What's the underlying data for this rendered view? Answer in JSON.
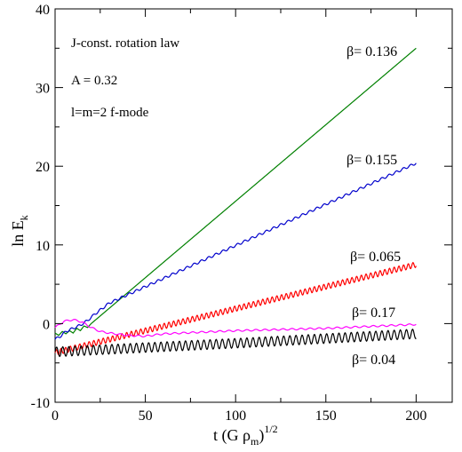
{
  "chart_data": {
    "type": "line",
    "xlabel": {
      "main": "t (G ρ",
      "sub": "m",
      "post": ")",
      "sup": "1/2"
    },
    "ylabel": {
      "main": "ln E",
      "sub": "k"
    },
    "xlim": [
      0,
      220
    ],
    "ylim": [
      -10,
      40
    ],
    "x_ticks": [
      0,
      50,
      100,
      150,
      200
    ],
    "y_ticks": [
      -10,
      0,
      10,
      20,
      30,
      40
    ],
    "x_tick_labels": [
      "0",
      "50",
      "100",
      "150",
      "200"
    ],
    "y_tick_labels": [
      "-10",
      "0",
      "10",
      "20",
      "30",
      "40"
    ],
    "grid": false,
    "annotations": [
      "J-const. rotation law",
      "A = 0.32",
      "l=m=2 f-mode"
    ],
    "series": [
      {
        "name": "β= 0.136",
        "color": "#008000",
        "x": [
          0,
          2,
          4,
          6,
          8,
          10,
          12,
          14,
          16,
          18,
          20,
          200
        ],
        "y": [
          -1.2,
          -1.5,
          -1.0,
          -1.3,
          -0.9,
          -1.2,
          -0.6,
          -0.9,
          -0.3,
          -0.5,
          0.0,
          35.0
        ],
        "osc_amp": 0,
        "osc_period": 0
      },
      {
        "name": "β= 0.155",
        "color": "#0000cc",
        "x": [
          0,
          3,
          6,
          10,
          14,
          18,
          22,
          26,
          30,
          200
        ],
        "y": [
          -2.0,
          -1.6,
          -1.0,
          -0.6,
          -0.2,
          0.4,
          1.2,
          1.9,
          2.6,
          20.4
        ],
        "osc_amp": 0.15,
        "osc_period": 4
      },
      {
        "name": "β= 0.065",
        "color": "#ff0000",
        "x": [
          0,
          200
        ],
        "y": [
          -3.7,
          7.5
        ],
        "osc_amp": 0.35,
        "osc_period": 2.6
      },
      {
        "name": "β= 0.17",
        "color": "#ff00ff",
        "x": [
          0,
          5,
          10,
          15,
          20,
          25,
          30,
          40,
          50,
          60,
          80,
          100,
          150,
          200
        ],
        "y": [
          -0.5,
          0.3,
          0.5,
          0.2,
          -0.5,
          -1.0,
          -1.2,
          -1.5,
          -1.6,
          -1.3,
          -1.1,
          -0.9,
          -0.6,
          -0.1
        ],
        "osc_amp": 0.1,
        "osc_period": 5
      },
      {
        "name": "β= 0.04",
        "color": "#000000",
        "x": [
          0,
          100,
          200
        ],
        "y": [
          -3.6,
          -2.5,
          -1.3
        ],
        "osc_amp": 0.6,
        "osc_period": 3.4
      }
    ],
    "series_labels": [
      "β= 0.136",
      "β= 0.155",
      "β= 0.065",
      "β= 0.17",
      "β= 0.04"
    ]
  }
}
